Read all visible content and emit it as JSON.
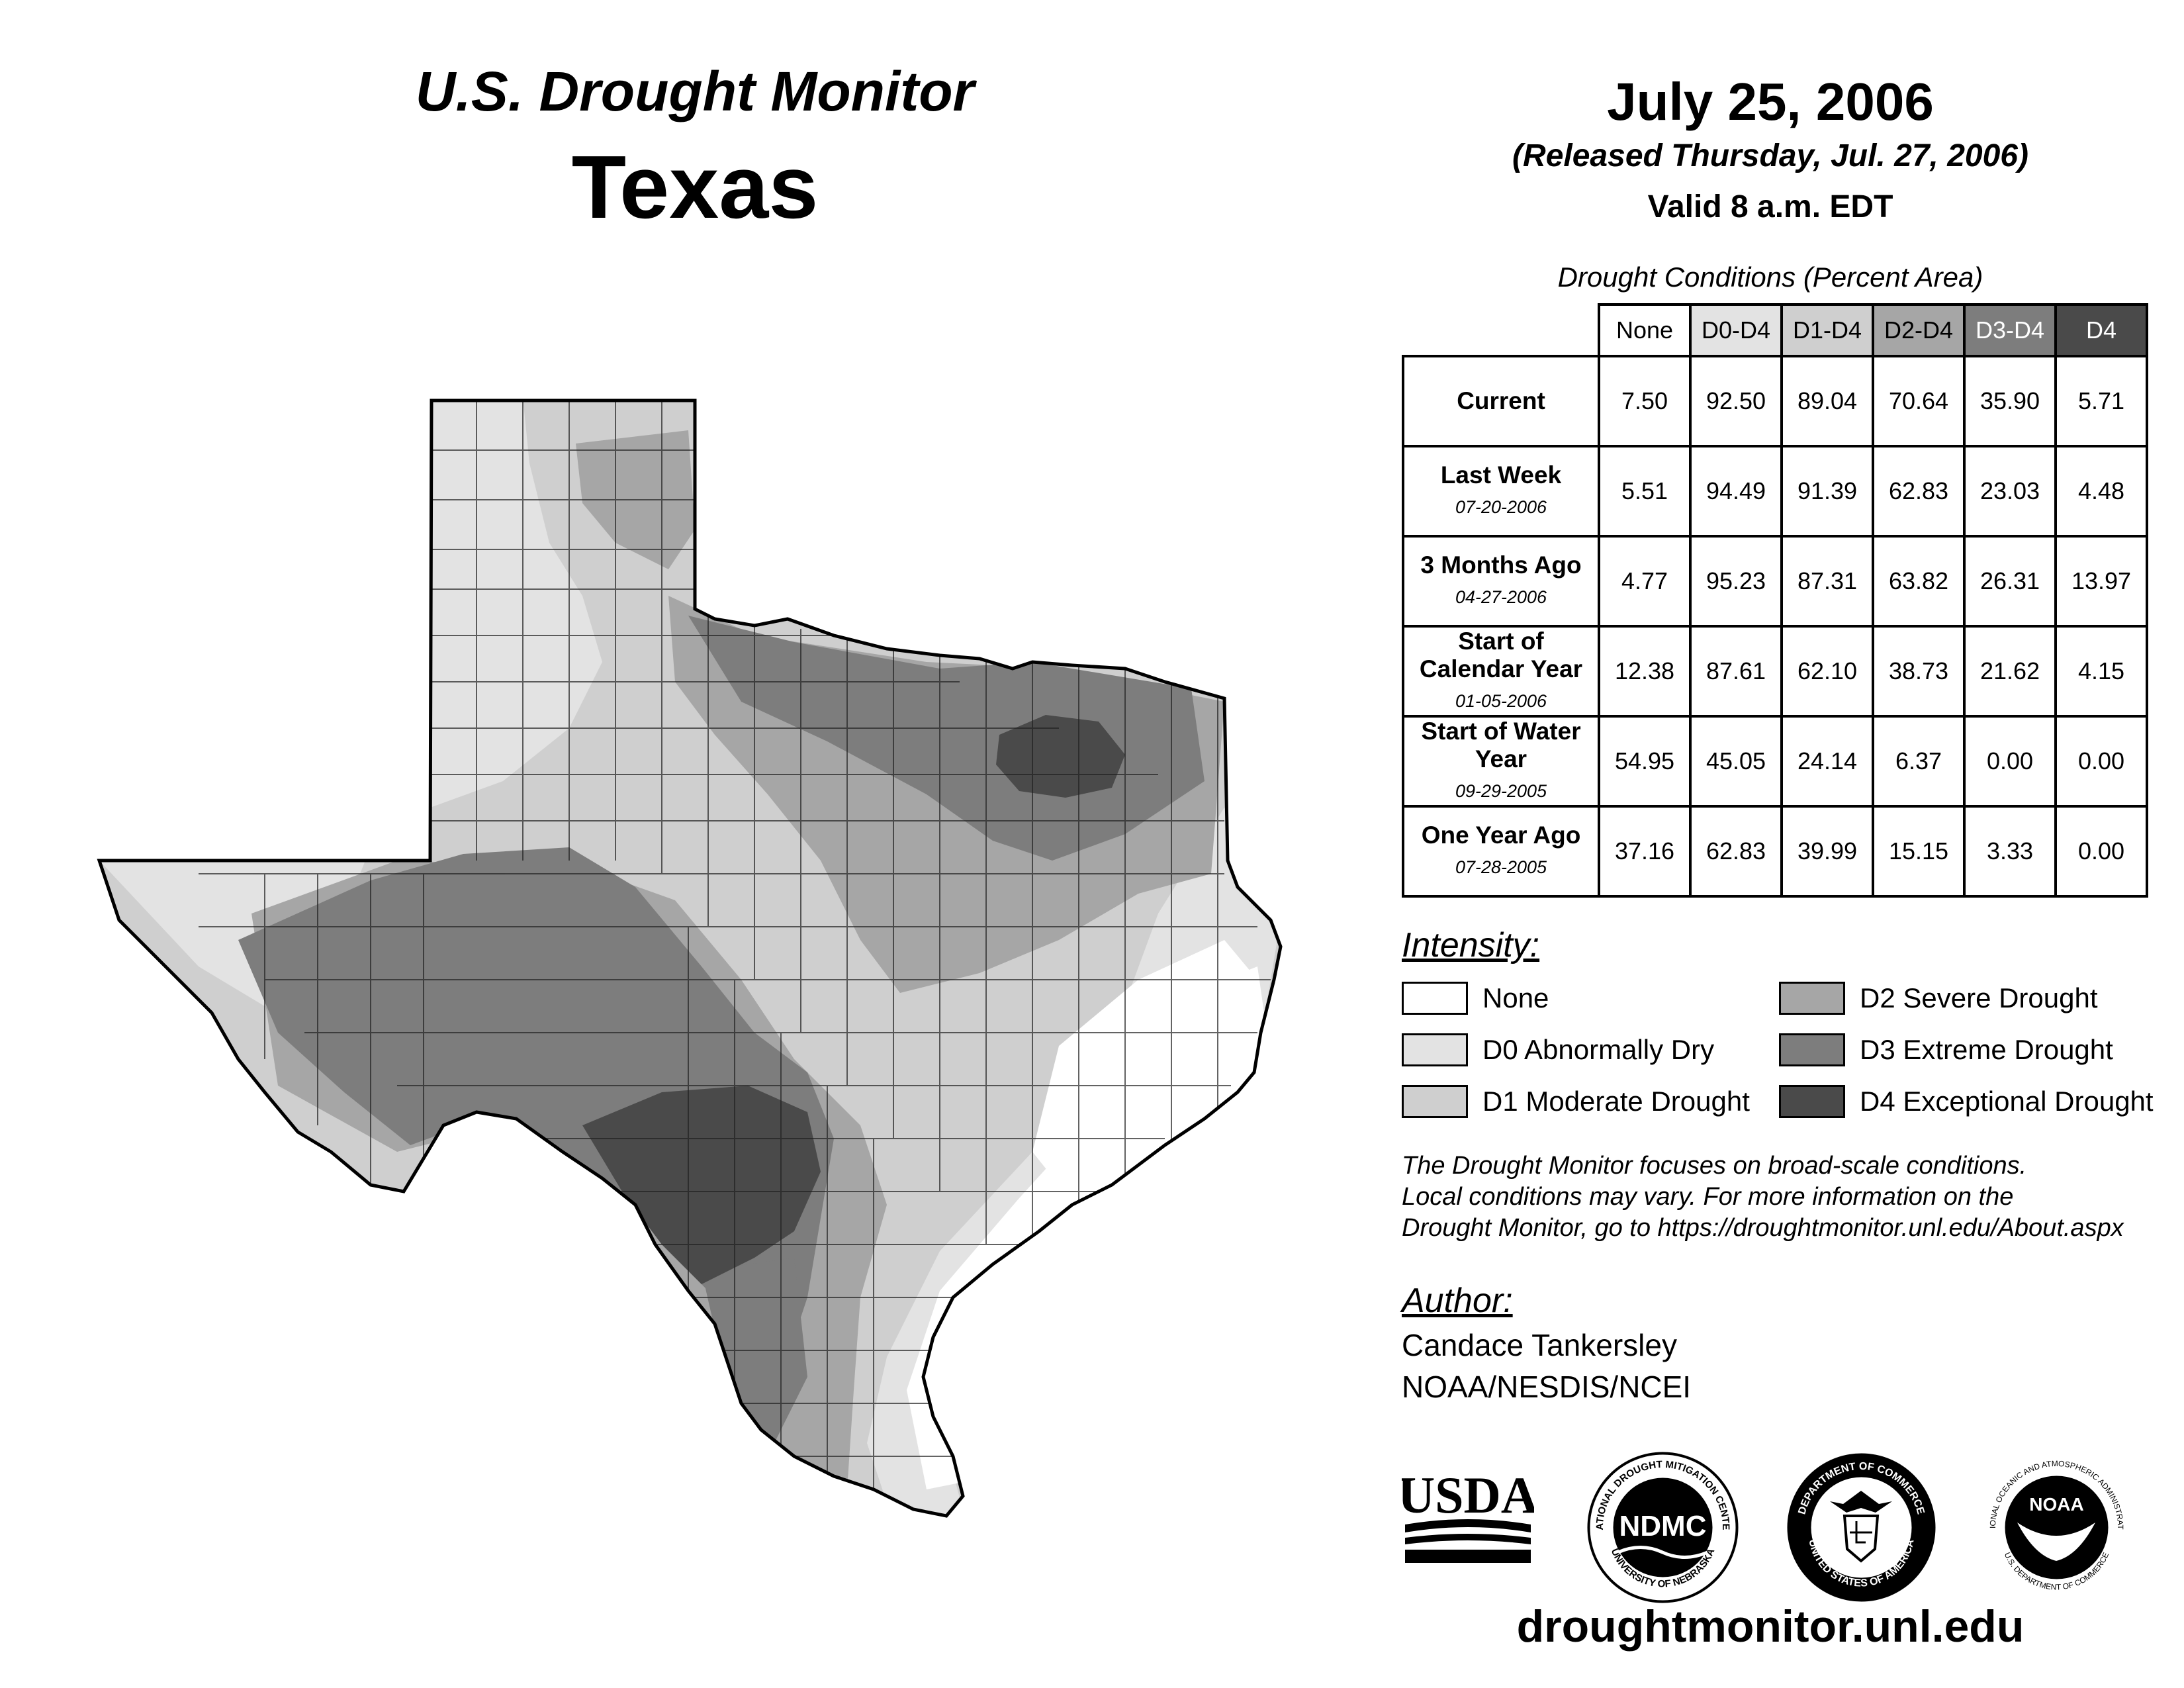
{
  "header": {
    "title": "U.S. Drought Monitor",
    "state": "Texas",
    "date": "July 25, 2006",
    "released": "(Released Thursday, Jul. 27, 2006)",
    "valid": "Valid 8 a.m. EDT"
  },
  "table": {
    "caption": "Drought Conditions (Percent Area)",
    "columns": [
      "None",
      "D0-D4",
      "D1-D4",
      "D2-D4",
      "D3-D4",
      "D4"
    ],
    "column_colors": [
      "#ffffff",
      "#e3e3e3",
      "#cfcfcf",
      "#a6a6a6",
      "#7d7d7d",
      "#4a4a4a"
    ],
    "rows": [
      {
        "label": "Current",
        "date": "",
        "values": [
          "7.50",
          "92.50",
          "89.04",
          "70.64",
          "35.90",
          "5.71"
        ]
      },
      {
        "label": "Last Week",
        "date": "07-20-2006",
        "values": [
          "5.51",
          "94.49",
          "91.39",
          "62.83",
          "23.03",
          "4.48"
        ]
      },
      {
        "label": "3 Months Ago",
        "date": "04-27-2006",
        "values": [
          "4.77",
          "95.23",
          "87.31",
          "63.82",
          "26.31",
          "13.97"
        ]
      },
      {
        "label": "Start of Calendar Year",
        "date": "01-05-2006",
        "values": [
          "12.38",
          "87.61",
          "62.10",
          "38.73",
          "21.62",
          "4.15"
        ]
      },
      {
        "label": "Start of Water Year",
        "date": "09-29-2005",
        "values": [
          "54.95",
          "45.05",
          "24.14",
          "6.37",
          "0.00",
          "0.00"
        ]
      },
      {
        "label": "One Year Ago",
        "date": "07-28-2005",
        "values": [
          "37.16",
          "62.83",
          "39.99",
          "15.15",
          "3.33",
          "0.00"
        ]
      }
    ]
  },
  "legend": {
    "heading": "Intensity:",
    "items": [
      {
        "label": "None",
        "color": "#ffffff"
      },
      {
        "label": "D0 Abnormally Dry",
        "color": "#e3e3e3"
      },
      {
        "label": "D1 Moderate Drought",
        "color": "#cfcfcf"
      },
      {
        "label": "D2 Severe Drought",
        "color": "#a6a6a6"
      },
      {
        "label": "D3 Extreme Drought",
        "color": "#7d7d7d"
      },
      {
        "label": "D4 Exceptional Drought",
        "color": "#4a4a4a"
      }
    ]
  },
  "note": {
    "line1": "The Drought Monitor focuses on broad-scale conditions.",
    "line2": "Local conditions may vary. For more information on the",
    "line3": "Drought Monitor, go to https://droughtmonitor.unl.edu/About.aspx"
  },
  "author": {
    "heading": "Author:",
    "name": "Candace Tankersley",
    "org": "NOAA/NESDIS/NCEI"
  },
  "logos": {
    "usda": "USDA",
    "ndmc": "NDMC",
    "ndmc_ring_top": "NATIONAL DROUGHT MITIGATION CENTER",
    "ndmc_ring_bottom": "UNIVERSITY OF NEBRASKA",
    "doc_ring_top": "DEPARTMENT OF COMMERCE",
    "doc_ring_bottom": "UNITED STATES OF AMERICA",
    "noaa": "NOAA",
    "noaa_ring_top": "NATIONAL OCEANIC AND ATMOSPHERIC ADMINISTRATION",
    "noaa_ring_bottom": "U.S. DEPARTMENT OF COMMERCE"
  },
  "footer": {
    "url": "droughtmonitor.unl.edu"
  }
}
